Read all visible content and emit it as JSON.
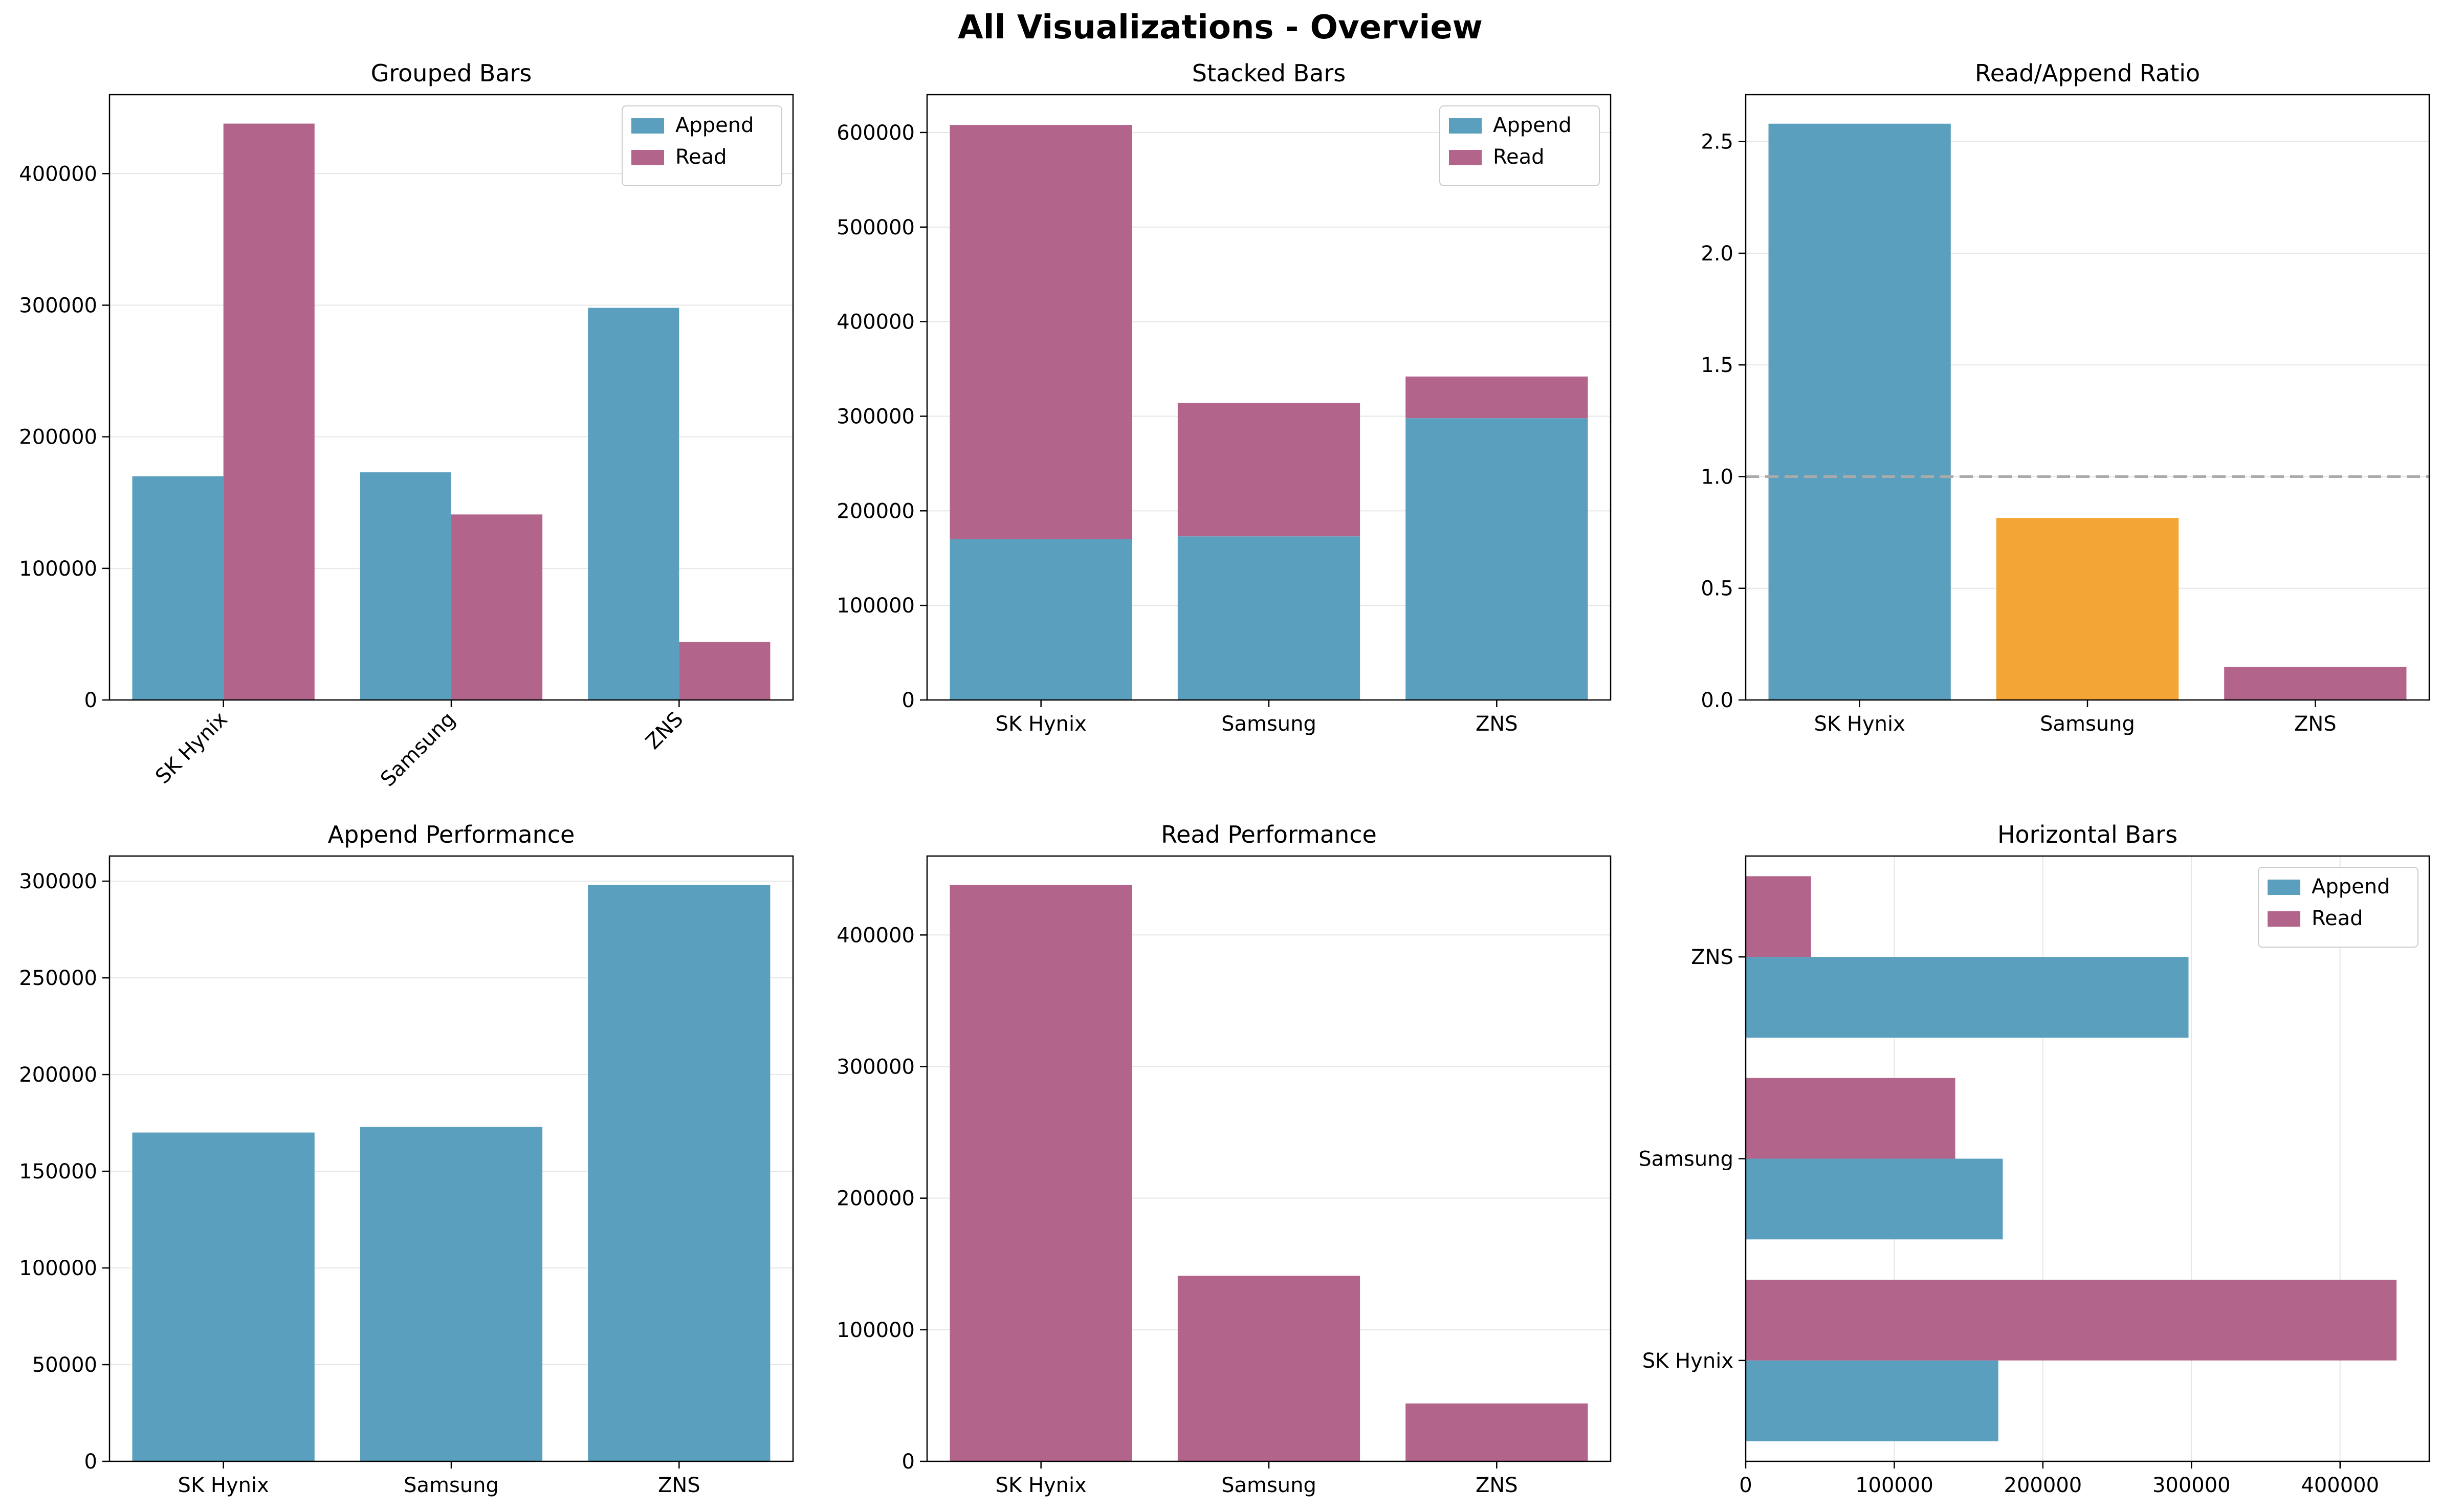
{
  "figure": {
    "title": "All Visualizations - Overview"
  },
  "colors": {
    "append": "#5a9fbd",
    "read": "#b3648b",
    "samsung_ratio": "#f3a535",
    "reference_line": "#aaaaaa",
    "grid": "#e6e6e6"
  },
  "chart_data": [
    {
      "id": "grouped",
      "type": "bar",
      "title": "Grouped Bars",
      "categories": [
        "SK Hynix",
        "Samsung",
        "ZNS"
      ],
      "series": [
        {
          "name": "Append",
          "values": [
            170000,
            173000,
            298000
          ]
        },
        {
          "name": "Read",
          "values": [
            438000,
            141000,
            44000
          ]
        }
      ],
      "ylim": [
        0,
        460000
      ],
      "yticks": [
        0,
        100000,
        200000,
        300000,
        400000
      ],
      "grid": "y",
      "legend": "top-right",
      "xtick_rotation": 45
    },
    {
      "id": "stacked",
      "type": "bar",
      "stacked": true,
      "title": "Stacked Bars",
      "categories": [
        "SK Hynix",
        "Samsung",
        "ZNS"
      ],
      "series": [
        {
          "name": "Append",
          "values": [
            170000,
            173000,
            298000
          ]
        },
        {
          "name": "Read",
          "values": [
            438000,
            141000,
            44000
          ]
        }
      ],
      "ylim": [
        0,
        640000
      ],
      "yticks": [
        0,
        100000,
        200000,
        300000,
        400000,
        500000,
        600000
      ],
      "grid": "y",
      "legend": "top-right"
    },
    {
      "id": "ratio",
      "type": "bar",
      "title": "Read/Append Ratio",
      "categories": [
        "SK Hynix",
        "Samsung",
        "ZNS"
      ],
      "values": [
        2.58,
        0.815,
        0.148
      ],
      "bar_colors": [
        "#5a9fbd",
        "#f3a535",
        "#b3648b"
      ],
      "reference_line": 1.0,
      "ylim": [
        0,
        2.71
      ],
      "yticks": [
        0.0,
        0.5,
        1.0,
        1.5,
        2.0,
        2.5
      ],
      "ytick_labels": [
        "0.0",
        "0.5",
        "1.0",
        "1.5",
        "2.0",
        "2.5"
      ],
      "grid": "y"
    },
    {
      "id": "append",
      "type": "bar",
      "title": "Append Performance",
      "categories": [
        "SK Hynix",
        "Samsung",
        "ZNS"
      ],
      "values": [
        170000,
        173000,
        298000
      ],
      "ylim": [
        0,
        313000
      ],
      "yticks": [
        0,
        50000,
        100000,
        150000,
        200000,
        250000,
        300000
      ],
      "grid": "y"
    },
    {
      "id": "read",
      "type": "bar",
      "title": "Read Performance",
      "categories": [
        "SK Hynix",
        "Samsung",
        "ZNS"
      ],
      "values": [
        438000,
        141000,
        44000
      ],
      "ylim": [
        0,
        460000
      ],
      "yticks": [
        0,
        100000,
        200000,
        300000,
        400000
      ],
      "grid": "y"
    },
    {
      "id": "horizontal",
      "type": "bar",
      "orientation": "horizontal",
      "title": "Horizontal Bars",
      "categories": [
        "SK Hynix",
        "Samsung",
        "ZNS"
      ],
      "series": [
        {
          "name": "Append",
          "values": [
            170000,
            173000,
            298000
          ]
        },
        {
          "name": "Read",
          "values": [
            438000,
            141000,
            44000
          ]
        }
      ],
      "xlim": [
        0,
        460000
      ],
      "xticks": [
        0,
        100000,
        200000,
        300000,
        400000
      ],
      "grid": "x",
      "legend": "top-right"
    }
  ]
}
